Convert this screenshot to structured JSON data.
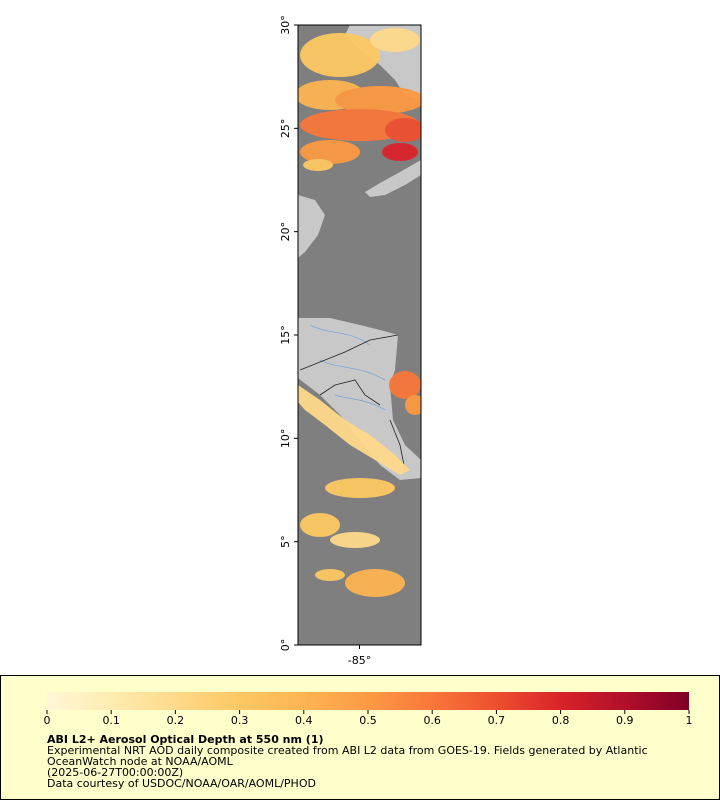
{
  "map": {
    "lat_range": [
      0,
      30
    ],
    "lon_range": [
      -88,
      -82
    ],
    "lat_ticks": [
      {
        "value": 0,
        "label": "0°"
      },
      {
        "value": 5,
        "label": "5°"
      },
      {
        "value": 10,
        "label": "10°"
      },
      {
        "value": 15,
        "label": "15°"
      },
      {
        "value": 20,
        "label": "20°"
      },
      {
        "value": 25,
        "label": "25°"
      },
      {
        "value": 30,
        "label": "30°"
      }
    ],
    "lon_ticks": [
      {
        "value": -85,
        "label": "-85°"
      }
    ]
  },
  "colorbar": {
    "title": "ABI L2+ Aerosol Optical Depth at 550 nm (1)",
    "range": [
      0,
      1
    ],
    "ticks": [
      0,
      0.1,
      0.2,
      0.3,
      0.4,
      0.5,
      0.6,
      0.7,
      0.8,
      0.9,
      1
    ],
    "colors": [
      "#fff7d8",
      "#ffecb0",
      "#fed98a",
      "#fdc862",
      "#fdb452",
      "#fc9a44",
      "#f9773a",
      "#ee4f2f",
      "#d9232a",
      "#b10f2b",
      "#800026"
    ]
  },
  "notes": [
    "Experimental NRT AOD daily composite created from ABI L2 data from GOES-19. Fields generated by Atlantic",
    "OceanWatch node at NOAA/AOML",
    "(2025-06-27T00:00:00Z)",
    "Data courtesy of USDOC/NOAA/OAR/AOML/PHOD"
  ]
}
